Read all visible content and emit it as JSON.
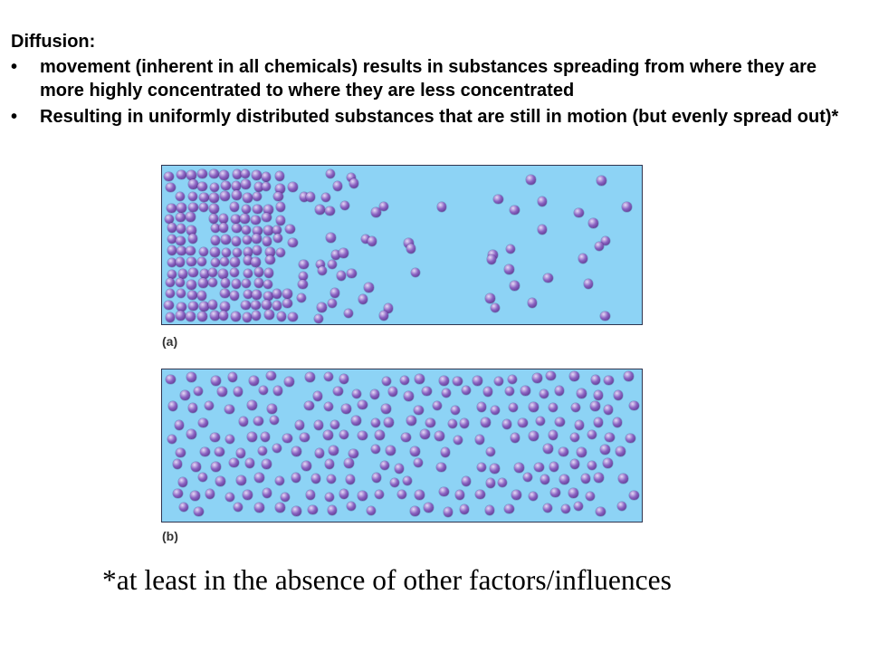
{
  "slide": {
    "heading": "Diffusion:",
    "bullet_symbol": "•",
    "bullets": [
      {
        "lines": [
          "movement (inherent in all chemicals) results in substances spreading from where they are",
          "more highly concentrated to where they are less concentrated"
        ]
      },
      {
        "lines": [
          "Resulting in uniformly distributed substances that are still in motion (but evenly spread out)*"
        ]
      }
    ],
    "figure": {
      "panel_a": {
        "label": "(a)"
      },
      "panel_b": {
        "label": "(b)"
      }
    },
    "footnote": "*at least in the absence of other factors/influences"
  },
  "colors": {
    "background": "#ffffff",
    "text": "#000000",
    "panel_fill": "#8dd3f5",
    "panel_border": "#2f3550",
    "particle_highlight": "#e6dcf7",
    "particle": "#8a62c2",
    "particle_shadow": "#4a2a7c",
    "label": "#333333"
  }
}
